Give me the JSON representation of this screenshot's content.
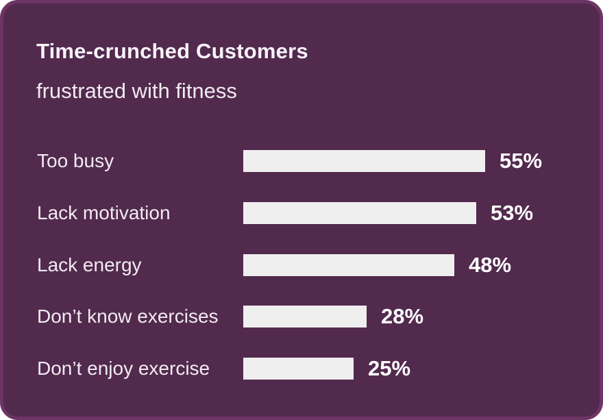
{
  "card": {
    "title": "Time-crunched Customers",
    "subtitle": "frustrated with fitness"
  },
  "colors": {
    "card_bg": "#522a4e",
    "card_border": "#6d3466",
    "bar_fill": "#f0eff0",
    "title_color": "#f8f3f8",
    "label_color": "#f2ebf1",
    "value_color": "#ffffff"
  },
  "chart_data": {
    "type": "bar",
    "orientation": "horizontal",
    "title": "Time-crunched Customers",
    "subtitle": "frustrated with fitness",
    "categories": [
      "Too busy",
      "Lack motivation",
      "Lack energy",
      "Don’t know exercises",
      "Don’t enjoy exercise"
    ],
    "values": [
      55,
      53,
      48,
      28,
      25
    ],
    "value_labels": [
      "55%",
      "53%",
      "48%",
      "28%",
      "25%"
    ],
    "unit": "%",
    "xlim": [
      0,
      55
    ],
    "grid": false,
    "legend": "none",
    "axis_ticks": "none",
    "value_label_position": "right-of-bar"
  }
}
